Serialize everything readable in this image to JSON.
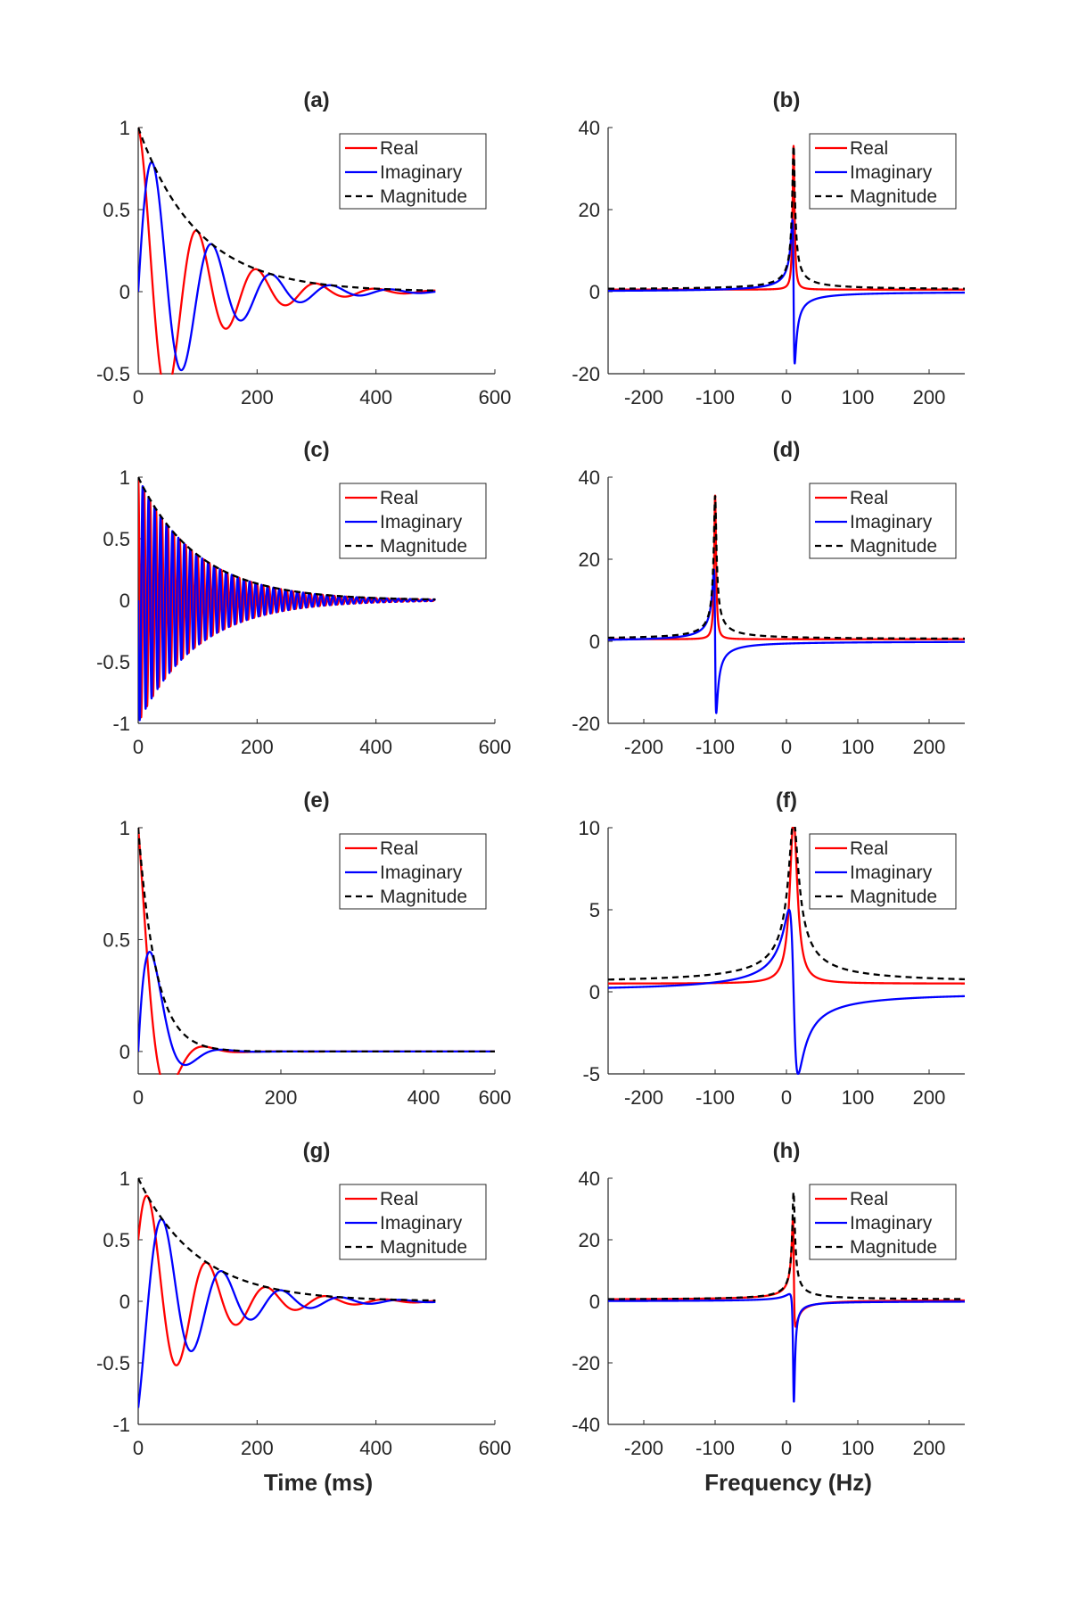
{
  "figure": {
    "xlabel_left": "Time (ms)",
    "xlabel_right": "Frequency (Hz)"
  },
  "legend": [
    "Real",
    "Imaginary",
    "Magnitude"
  ],
  "colors": {
    "real": "#ff0000",
    "imaginary": "#0000ff",
    "magnitude": "#000000"
  },
  "chart_data": [
    {
      "id": "a",
      "title": "(a)",
      "type": "line",
      "domain": "time",
      "xlim": [
        0,
        600
      ],
      "ylim": [
        -0.5,
        1
      ],
      "xticks": [
        0,
        200,
        400,
        600
      ],
      "yticks": [
        -0.5,
        0,
        0.5,
        1
      ],
      "params": {
        "amp": 1,
        "T2_ms": 100,
        "freq_hz": 10,
        "phase_rad": 0,
        "t_max_ms": 500
      },
      "series": [
        {
          "name": "Real",
          "x": [
            0,
            25,
            45,
            95,
            145,
            195,
            245,
            300,
            400,
            500
          ],
          "y": [
            1,
            0,
            -0.5,
            0.24,
            -0.13,
            0.06,
            -0.03,
            0.01,
            0,
            0
          ]
        },
        {
          "name": "Imaginary",
          "x": [
            0,
            22,
            70,
            120,
            170,
            220,
            270,
            320,
            400,
            500
          ],
          "y": [
            0,
            0.72,
            -0.36,
            0.17,
            -0.09,
            0.05,
            -0.02,
            0.01,
            0,
            0
          ]
        },
        {
          "name": "Magnitude",
          "x": [
            0,
            50,
            100,
            200,
            300,
            400,
            500
          ],
          "y": [
            1,
            0.61,
            0.37,
            0.14,
            0.05,
            0.02,
            0.01
          ]
        }
      ]
    },
    {
      "id": "b",
      "title": "(b)",
      "type": "line",
      "domain": "frequency",
      "xlim": [
        -250,
        250
      ],
      "ylim": [
        -20,
        40
      ],
      "xticks": [
        -200,
        -100,
        0,
        100,
        200
      ],
      "yticks": [
        -20,
        0,
        20,
        40
      ],
      "params": {
        "amp": 1,
        "T2_ms": 100,
        "freq_hz": 10,
        "phase_rad": 0,
        "spec_scale": 35,
        "spec_offset": 0.5
      },
      "series": [
        {
          "name": "Real",
          "x": [
            -250,
            -100,
            0,
            8,
            10,
            12,
            20,
            100,
            250
          ],
          "y": [
            0.5,
            0.6,
            1,
            20,
            35,
            20,
            1.2,
            0.6,
            0.5
          ]
        },
        {
          "name": "Imaginary",
          "x": [
            -250,
            -100,
            0,
            7,
            10,
            13,
            20,
            100,
            250
          ],
          "y": [
            -0.3,
            0.5,
            3.5,
            17,
            0,
            -17,
            -8,
            -1.5,
            -0.5
          ]
        },
        {
          "name": "Magnitude",
          "x": [
            -250,
            -100,
            0,
            10,
            20,
            100,
            250
          ],
          "y": [
            0.8,
            1,
            4,
            35,
            4,
            1,
            0.7
          ]
        }
      ]
    },
    {
      "id": "c",
      "title": "(c)",
      "type": "line",
      "domain": "time",
      "xlim": [
        0,
        600
      ],
      "ylim": [
        -1,
        1
      ],
      "xticks": [
        0,
        200,
        400,
        600
      ],
      "yticks": [
        -1,
        -0.5,
        0,
        0.5,
        1
      ],
      "params": {
        "amp": 1,
        "T2_ms": 100,
        "freq_hz": -100,
        "phase_rad": 0,
        "t_max_ms": 500
      },
      "series": [
        {
          "name": "Real",
          "x": [
            0,
            5,
            10,
            15,
            20
          ],
          "y": [
            1,
            -0.95,
            0.9,
            -0.86,
            0.82
          ]
        },
        {
          "name": "Imaginary",
          "x": [
            0,
            2.5,
            7.5,
            12.5,
            17.5
          ],
          "y": [
            0,
            -0.97,
            0.93,
            -0.88,
            0.84
          ]
        },
        {
          "name": "Magnitude",
          "x": [
            0,
            50,
            100,
            200,
            300,
            400,
            500
          ],
          "y": [
            1,
            0.61,
            0.37,
            0.14,
            0.05,
            0.02,
            0.01
          ]
        }
      ]
    },
    {
      "id": "d",
      "title": "(d)",
      "type": "line",
      "domain": "frequency",
      "xlim": [
        -250,
        250
      ],
      "ylim": [
        -20,
        40
      ],
      "xticks": [
        -200,
        -100,
        0,
        100,
        200
      ],
      "yticks": [
        -20,
        0,
        20,
        40
      ],
      "params": {
        "amp": 1,
        "T2_ms": 100,
        "freq_hz": -100,
        "phase_rad": 0,
        "spec_scale": 35,
        "spec_offset": 0.5
      },
      "series": [
        {
          "name": "Real",
          "x": [
            -250,
            -110,
            -102,
            -100,
            -98,
            -90,
            0,
            250
          ],
          "y": [
            0.5,
            1.2,
            20,
            35,
            20,
            1.2,
            0.6,
            0.5
          ]
        },
        {
          "name": "Imaginary",
          "x": [
            -250,
            -110,
            -103,
            -100,
            -97,
            -90,
            0,
            250
          ],
          "y": [
            0.3,
            8,
            17,
            0,
            -17,
            -8,
            -1,
            0.3
          ]
        },
        {
          "name": "Magnitude",
          "x": [
            -250,
            -110,
            -100,
            -90,
            0,
            250
          ],
          "y": [
            0.8,
            4,
            35,
            4,
            1,
            0.8
          ]
        }
      ]
    },
    {
      "id": "e",
      "title": "(e)",
      "type": "line",
      "domain": "time",
      "xlim": [
        0,
        500
      ],
      "ylim": [
        -0.1,
        1
      ],
      "xticks": [
        0,
        200,
        400,
        600
      ],
      "yticks": [
        0,
        0.5,
        1
      ],
      "params": {
        "amp": 1,
        "T2_ms": 25,
        "freq_hz": 10,
        "phase_rad": 0,
        "t_max_ms": 500
      },
      "series": [
        {
          "name": "Real",
          "x": [
            0,
            25,
            38,
            60,
            100,
            500
          ],
          "y": [
            1,
            0,
            -0.1,
            -0.02,
            0,
            0
          ]
        },
        {
          "name": "Imaginary",
          "x": [
            0,
            14,
            35,
            60,
            100,
            500
          ],
          "y": [
            0,
            0.38,
            0.08,
            -0.03,
            0,
            0
          ]
        },
        {
          "name": "Magnitude",
          "x": [
            0,
            25,
            50,
            100,
            500
          ],
          "y": [
            1,
            0.37,
            0.14,
            0.02,
            0
          ]
        }
      ]
    },
    {
      "id": "f",
      "title": "(f)",
      "type": "line",
      "domain": "frequency",
      "xlim": [
        -250,
        250
      ],
      "ylim": [
        -5,
        10
      ],
      "xticks": [
        -200,
        -100,
        0,
        100,
        200
      ],
      "yticks": [
        -5,
        0,
        5,
        10
      ],
      "params": {
        "amp": 1,
        "T2_ms": 25,
        "freq_hz": 10,
        "phase_rad": 0,
        "spec_scale": 10,
        "spec_offset": 0.5
      },
      "series": [
        {
          "name": "Real",
          "x": [
            -250,
            -100,
            -10,
            0,
            10,
            20,
            30,
            100,
            250
          ],
          "y": [
            0.5,
            0.6,
            1.6,
            5.3,
            10.5,
            5.3,
            1.6,
            0.6,
            0.5
          ]
        },
        {
          "name": "Imaginary",
          "x": [
            -250,
            -100,
            -10,
            -3,
            10,
            23,
            50,
            100,
            250
          ],
          "y": [
            -0.1,
            0.5,
            3,
            5,
            0,
            -5,
            -3,
            -1.5,
            -0.1
          ]
        },
        {
          "name": "Magnitude",
          "x": [
            -250,
            -100,
            -10,
            10,
            30,
            100,
            250
          ],
          "y": [
            0.6,
            1.1,
            3.9,
            10.5,
            3.9,
            1.1,
            0.6
          ]
        }
      ]
    },
    {
      "id": "g",
      "title": "(g)",
      "type": "line",
      "domain": "time",
      "xlim": [
        0,
        600
      ],
      "ylim": [
        -1,
        1
      ],
      "xticks": [
        0,
        200,
        400,
        600
      ],
      "yticks": [
        -1,
        -0.5,
        0,
        0.5,
        1
      ],
      "params": {
        "amp": 1,
        "T2_ms": 100,
        "freq_hz": 10,
        "phase_rad": -1.0472,
        "t_max_ms": 500
      },
      "series": [
        {
          "name": "Real",
          "x": [
            0,
            15,
            65,
            115,
            165,
            215,
            265,
            500
          ],
          "y": [
            0.5,
            0.8,
            -0.38,
            0.2,
            -0.1,
            0.05,
            -0.02,
            0
          ]
        },
        {
          "name": "Imaginary",
          "x": [
            0,
            40,
            90,
            140,
            190,
            240,
            290,
            500
          ],
          "y": [
            -0.87,
            0.56,
            -0.28,
            0.14,
            -0.07,
            0.03,
            -0.01,
            0
          ]
        },
        {
          "name": "Magnitude",
          "x": [
            0,
            50,
            100,
            200,
            300,
            400,
            500
          ],
          "y": [
            1,
            0.61,
            0.37,
            0.14,
            0.05,
            0.02,
            0.01
          ]
        }
      ]
    },
    {
      "id": "h",
      "title": "(h)",
      "type": "line",
      "domain": "frequency",
      "xlim": [
        -250,
        250
      ],
      "ylim": [
        -40,
        40
      ],
      "xticks": [
        -200,
        -100,
        0,
        100,
        200
      ],
      "yticks": [
        -40,
        -20,
        0,
        20,
        40
      ],
      "params": {
        "amp": 1,
        "T2_ms": 100,
        "freq_hz": 10,
        "phase_rad": -1.0472,
        "spec_scale": 35,
        "spec_offset": 0.5
      },
      "series": [
        {
          "name": "Real",
          "x": [
            -250,
            -100,
            0,
            8,
            10,
            12,
            20,
            100,
            250
          ],
          "y": [
            0.5,
            0.6,
            2,
            20,
            17.5,
            -8,
            -3,
            -0.5,
            -0.3
          ]
        },
        {
          "name": "Imaginary",
          "x": [
            -250,
            -100,
            0,
            7,
            10,
            13,
            20,
            100,
            250
          ],
          "y": [
            -0.5,
            -0.6,
            1,
            2,
            -30,
            -14,
            -3,
            -1,
            -0.6
          ]
        },
        {
          "name": "Magnitude",
          "x": [
            -250,
            -100,
            0,
            10,
            20,
            100,
            250
          ],
          "y": [
            0.8,
            1,
            4,
            35,
            4,
            1,
            0.7
          ]
        }
      ]
    }
  ]
}
